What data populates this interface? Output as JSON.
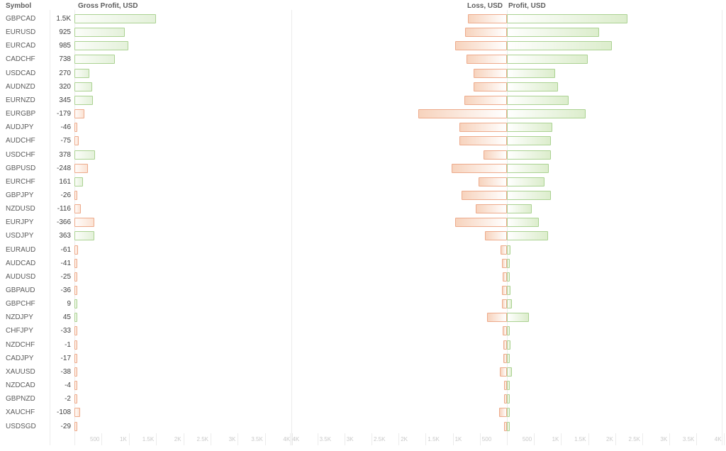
{
  "headers": {
    "symbol": "Symbol",
    "gross_profit": "Gross Profit, USD",
    "loss": "Loss, USD",
    "profit": "Profit, USD"
  },
  "colors": {
    "profit_border": "#abd292",
    "profit_fill": "#e4f1da",
    "loss_border": "#edaa8b",
    "loss_fill": "#fbe2d3",
    "grid_line": "#ececec",
    "axis_label": "#c9c9c9",
    "symbol_text": "#5b5b5b",
    "value_text": "#404040",
    "header_text": "#5f5f5f"
  },
  "chart_data": {
    "type": "bar",
    "layout": "two horizontal bar charts sharing one symbol row list; left = net gross profit per symbol, right = diverging loss/profit per symbol",
    "grid": "bottom ticks only, faint vertical boundary lines",
    "charts": [
      {
        "name": "gross-profit",
        "type": "bar",
        "orientation": "horizontal",
        "title": "Gross Profit, USD",
        "xlim": [
          0,
          4000
        ],
        "x_ticks": [
          "500",
          "1K",
          "1.5K",
          "2K",
          "2.5K",
          "3K",
          "3.5K",
          "4K"
        ],
        "bar_rule": "bar length = |net|; green when net >= 0, orange when net < 0"
      },
      {
        "name": "loss-profit",
        "type": "diverging-bar",
        "orientation": "horizontal",
        "title": "Loss, USD / Profit, USD",
        "xlim": [
          -4000,
          4000
        ],
        "x_ticks_loss": [
          "4K",
          "3.5K",
          "3K",
          "2.5K",
          "2K",
          "1.5K",
          "1K",
          "500"
        ],
        "x_ticks_profit": [
          "500",
          "1K",
          "1.5K",
          "2K",
          "2.5K",
          "3K",
          "3.5K",
          "4K"
        ],
        "bar_rule": "orange loss bar extends left of center, green profit bar extends right; loss/profit values estimated from bar lengths"
      }
    ],
    "rows": [
      {
        "symbol": "GBPCAD",
        "net_label": "1.5K",
        "net": 1500,
        "loss": 720,
        "profit": 2220
      },
      {
        "symbol": "EURUSD",
        "net_label": "925",
        "net": 925,
        "loss": 775,
        "profit": 1700
      },
      {
        "symbol": "EURCAD",
        "net_label": "985",
        "net": 985,
        "loss": 955,
        "profit": 1940
      },
      {
        "symbol": "CADCHF",
        "net_label": "738",
        "net": 738,
        "loss": 750,
        "profit": 1490
      },
      {
        "symbol": "USDCAD",
        "net_label": "270",
        "net": 270,
        "loss": 620,
        "profit": 890
      },
      {
        "symbol": "AUDNZD",
        "net_label": "320",
        "net": 320,
        "loss": 620,
        "profit": 940
      },
      {
        "symbol": "EURNZD",
        "net_label": "345",
        "net": 345,
        "loss": 790,
        "profit": 1135
      },
      {
        "symbol": "EURGBP",
        "net_label": "-179",
        "net": -179,
        "loss": 1630,
        "profit": 1450
      },
      {
        "symbol": "AUDJPY",
        "net_label": "-46",
        "net": -46,
        "loss": 880,
        "profit": 834
      },
      {
        "symbol": "AUDCHF",
        "net_label": "-75",
        "net": -75,
        "loss": 880,
        "profit": 805
      },
      {
        "symbol": "USDCHF",
        "net_label": "378",
        "net": 378,
        "loss": 430,
        "profit": 808
      },
      {
        "symbol": "GBPUSD",
        "net_label": "-248",
        "net": -248,
        "loss": 1020,
        "profit": 772
      },
      {
        "symbol": "EURCHF",
        "net_label": "161",
        "net": 161,
        "loss": 530,
        "profit": 691
      },
      {
        "symbol": "GBPJPY",
        "net_label": "-26",
        "net": -26,
        "loss": 840,
        "profit": 814
      },
      {
        "symbol": "NZDUSD",
        "net_label": "-116",
        "net": -116,
        "loss": 580,
        "profit": 464
      },
      {
        "symbol": "EURJPY",
        "net_label": "-366",
        "net": -366,
        "loss": 950,
        "profit": 584
      },
      {
        "symbol": "USDJPY",
        "net_label": "363",
        "net": 363,
        "loss": 400,
        "profit": 763
      },
      {
        "symbol": "EURAUD",
        "net_label": "-61",
        "net": -61,
        "loss": 120,
        "profit": 59
      },
      {
        "symbol": "AUDCAD",
        "net_label": "-41",
        "net": -41,
        "loss": 90,
        "profit": 49
      },
      {
        "symbol": "AUDUSD",
        "net_label": "-25",
        "net": -25,
        "loss": 80,
        "profit": 55
      },
      {
        "symbol": "GBPAUD",
        "net_label": "-36",
        "net": -36,
        "loss": 95,
        "profit": 59
      },
      {
        "symbol": "GBPCHF",
        "net_label": "9",
        "net": 9,
        "loss": 88,
        "profit": 97
      },
      {
        "symbol": "NZDJPY",
        "net_label": "45",
        "net": 45,
        "loss": 360,
        "profit": 405
      },
      {
        "symbol": "CHFJPY",
        "net_label": "-33",
        "net": -33,
        "loss": 80,
        "profit": 47
      },
      {
        "symbol": "NZDCHF",
        "net_label": "-1",
        "net": -1,
        "loss": 70,
        "profit": 69
      },
      {
        "symbol": "CADJPY",
        "net_label": "-17",
        "net": -17,
        "loss": 62,
        "profit": 45
      },
      {
        "symbol": "XAUUSD",
        "net_label": "-38",
        "net": -38,
        "loss": 130,
        "profit": 92
      },
      {
        "symbol": "NZDCAD",
        "net_label": "-4",
        "net": -4,
        "loss": 42,
        "profit": 38
      },
      {
        "symbol": "GBPNZD",
        "net_label": "-2",
        "net": -2,
        "loss": 46,
        "profit": 44
      },
      {
        "symbol": "XAUCHF",
        "net_label": "-108",
        "net": -108,
        "loss": 150,
        "profit": 42
      },
      {
        "symbol": "USDSGD",
        "net_label": "-29",
        "net": -29,
        "loss": 45,
        "profit": 16
      }
    ]
  }
}
